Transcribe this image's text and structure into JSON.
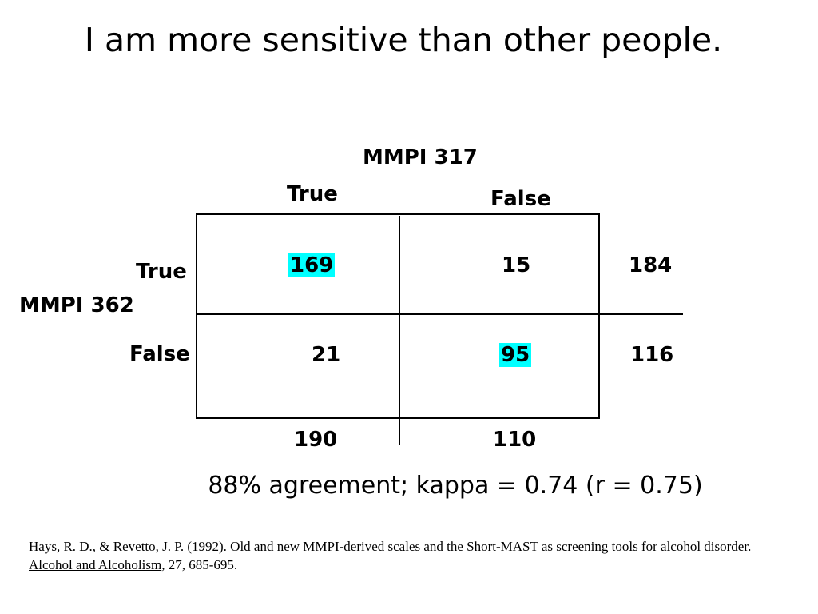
{
  "title": "I am more sensitive than other people.",
  "table": {
    "column_header": "MMPI 317",
    "column_labels": [
      "True",
      "False"
    ],
    "row_header": "MMPI 362",
    "row_labels": [
      "True",
      "False"
    ],
    "cells": [
      [
        "169",
        "15"
      ],
      [
        "21",
        "95"
      ]
    ],
    "row_totals": [
      "184",
      "116"
    ],
    "column_totals": [
      "190",
      "110"
    ],
    "highlight_color": "#00ffff"
  },
  "summary": "88% agreement; kappa = 0.74 (r = 0.75)",
  "citation": {
    "prefix": "Hays, R. D., & Revetto, J. P. (1992). Old and new MMPI-derived scales and the Short-MAST as screening tools for alcohol disorder. ",
    "journal": "Alcohol and Alcoholism",
    "suffix": ", 27, 685-695."
  }
}
